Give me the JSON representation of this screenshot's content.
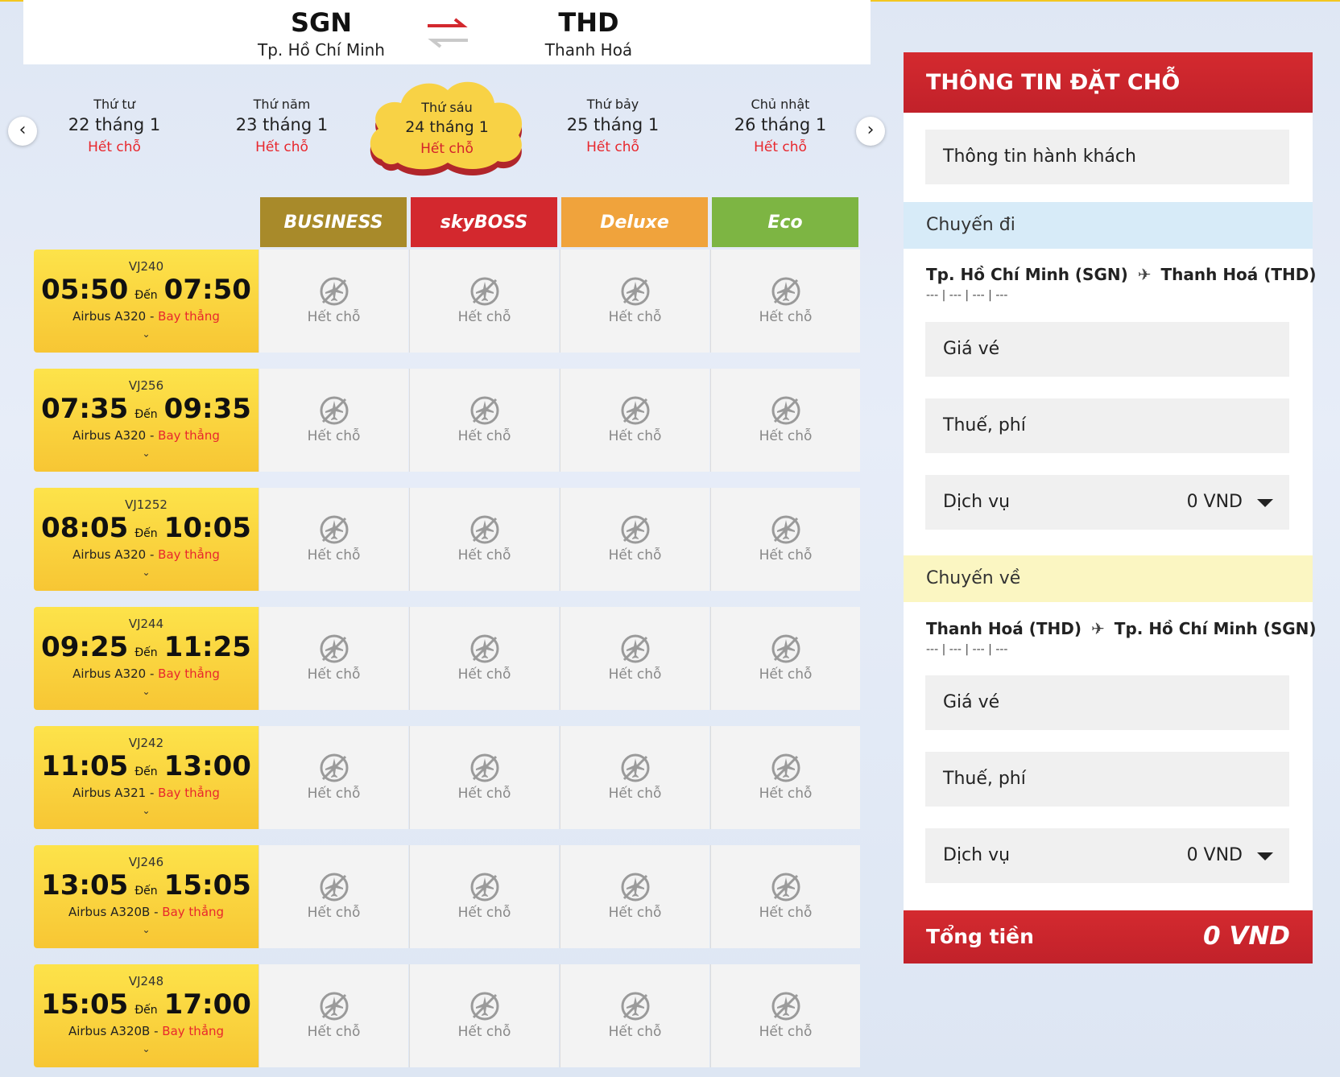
{
  "route": {
    "from_code": "SGN",
    "from_city": "Tp. Hồ Chí Minh",
    "to_code": "THD",
    "to_city": "Thanh Hoá"
  },
  "dates": [
    {
      "day": "Thứ tư",
      "date": "22 tháng 1",
      "status": "Hết chỗ"
    },
    {
      "day": "Thứ năm",
      "date": "23 tháng 1",
      "status": "Hết chỗ"
    },
    {
      "day": "Thứ sáu",
      "date": "24 tháng 1",
      "status": "Hết chỗ",
      "selected": true
    },
    {
      "day": "Thứ bảy",
      "date": "25 tháng 1",
      "status": "Hết chỗ"
    },
    {
      "day": "Chủ nhật",
      "date": "26 tháng 1",
      "status": "Hết chỗ"
    }
  ],
  "fare_classes": [
    "BUSINESS",
    "skyBOSS",
    "Deluxe",
    "Eco"
  ],
  "separator": "Đến",
  "direct": "Bay thẳng",
  "sold_out": "Hết chỗ",
  "flights": [
    {
      "no": "VJ240",
      "dep": "05:50",
      "arr": "07:50",
      "aircraft": "Airbus A320 -"
    },
    {
      "no": "VJ256",
      "dep": "07:35",
      "arr": "09:35",
      "aircraft": "Airbus A320 -"
    },
    {
      "no": "VJ1252",
      "dep": "08:05",
      "arr": "10:05",
      "aircraft": "Airbus A320 -"
    },
    {
      "no": "VJ244",
      "dep": "09:25",
      "arr": "11:25",
      "aircraft": "Airbus A320 -"
    },
    {
      "no": "VJ242",
      "dep": "11:05",
      "arr": "13:00",
      "aircraft": "Airbus A321 -"
    },
    {
      "no": "VJ246",
      "dep": "13:05",
      "arr": "15:05",
      "aircraft": "Airbus A320B -"
    },
    {
      "no": "VJ248",
      "dep": "15:05",
      "arr": "17:00",
      "aircraft": "Airbus A320B -"
    }
  ],
  "booking": {
    "title": "THÔNG TIN ĐẶT CHỖ",
    "passenger_info": "Thông tin hành khách",
    "outbound": {
      "label": "Chuyến đi",
      "from": "Tp. Hồ Chí Minh (SGN)",
      "to": "Thanh Hoá (THD)",
      "details": "--- | --- | --- | ---",
      "fare": "Giá vé",
      "tax": "Thuế, phí",
      "service": "Dịch vụ",
      "service_value": "0 VND"
    },
    "return": {
      "label": "Chuyến về",
      "from": "Thanh Hoá (THD)",
      "to": "Tp. Hồ Chí Minh (SGN)",
      "details": "--- | --- | --- | ---",
      "fare": "Giá vé",
      "tax": "Thuế, phí",
      "service": "Dịch vụ",
      "service_value": "0 VND"
    },
    "total_label": "Tổng tiền",
    "total_value": "0 VND"
  },
  "colors": {
    "accent_red": "#d3282e",
    "accent_yellow": "#f7c634",
    "business": "#a88a2a",
    "deluxe": "#f0a33c",
    "eco": "#7db543"
  }
}
